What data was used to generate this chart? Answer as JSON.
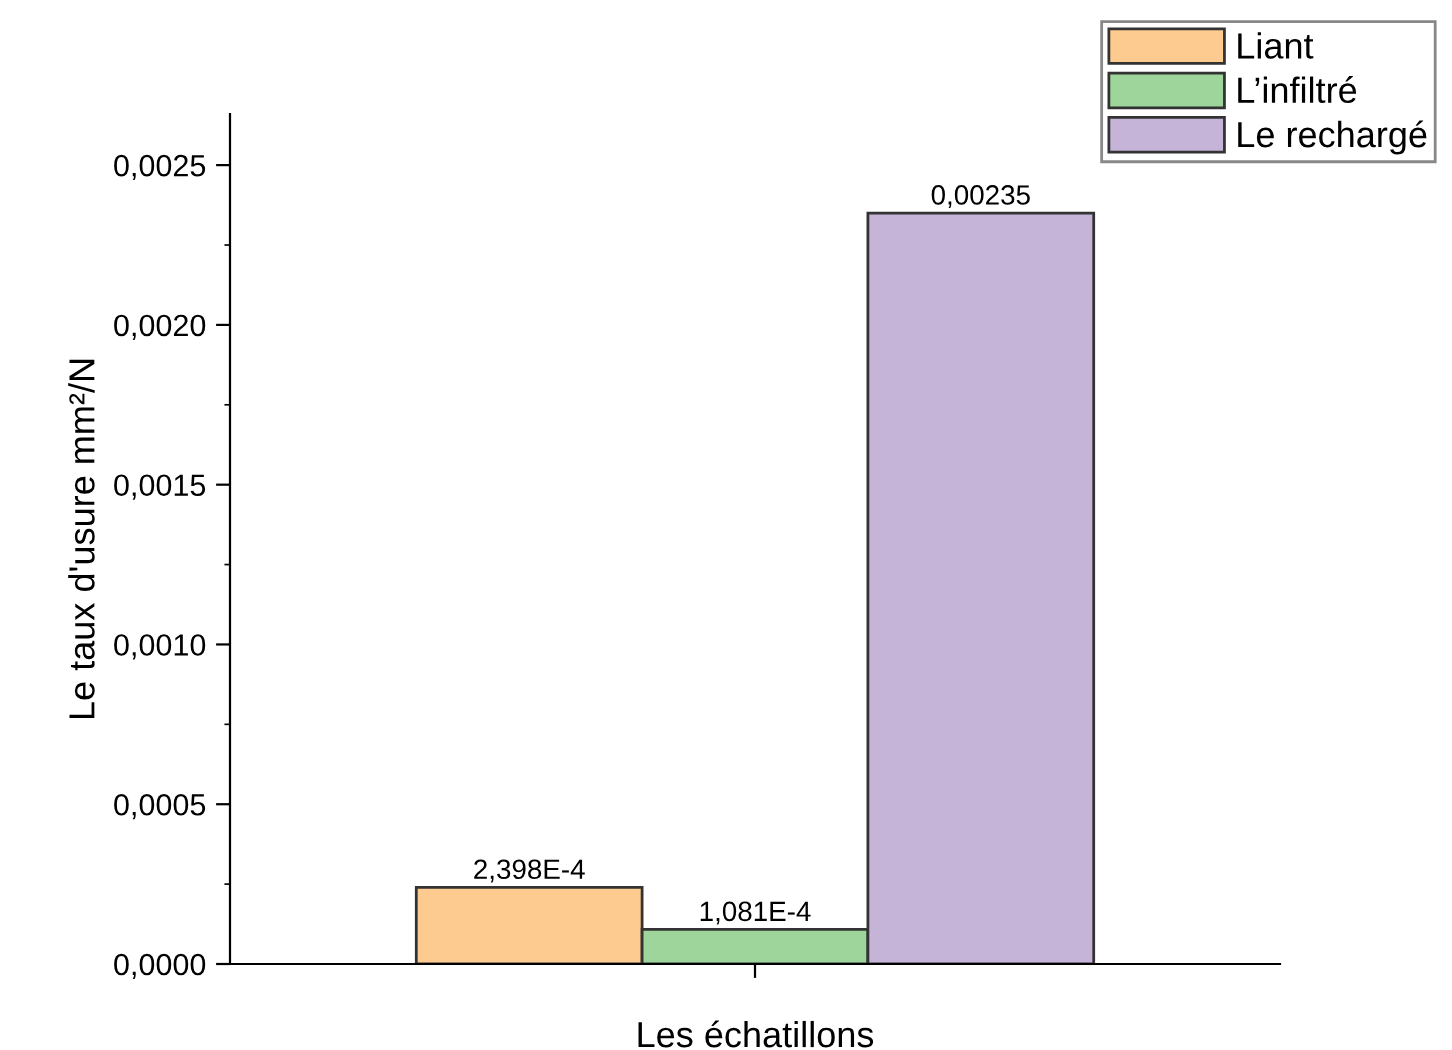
{
  "chart_data": {
    "type": "bar",
    "xlabel": "Les échatillons",
    "ylabel": "Le taux d'usure mm²/N",
    "categories": [
      null
    ],
    "series": [
      {
        "name": "Liant",
        "color": "#fdcb8f",
        "values": [
          0.0002398
        ]
      },
      {
        "name": "L’infiltré",
        "color": "#9dd59a",
        "values": [
          0.0001081
        ]
      },
      {
        "name": "Le rechargé",
        "color": "#c5b3d8",
        "values": [
          0.00235
        ]
      }
    ],
    "value_labels": [
      [
        "2,398E-4"
      ],
      [
        "1,081E-4"
      ],
      [
        "0,00235"
      ]
    ],
    "ylim": [
      0,
      0.00266
    ],
    "yticks": [
      {
        "value": 0,
        "label": "0,0000"
      },
      {
        "value": 0.0005,
        "label": "0,0005"
      },
      {
        "value": 0.001,
        "label": "0,0010"
      },
      {
        "value": 0.0015,
        "label": "0,0015"
      },
      {
        "value": 0.002,
        "label": "0,0020"
      },
      {
        "value": 0.0025,
        "label": "0,0025"
      }
    ],
    "grid": false,
    "legend": "top right"
  }
}
